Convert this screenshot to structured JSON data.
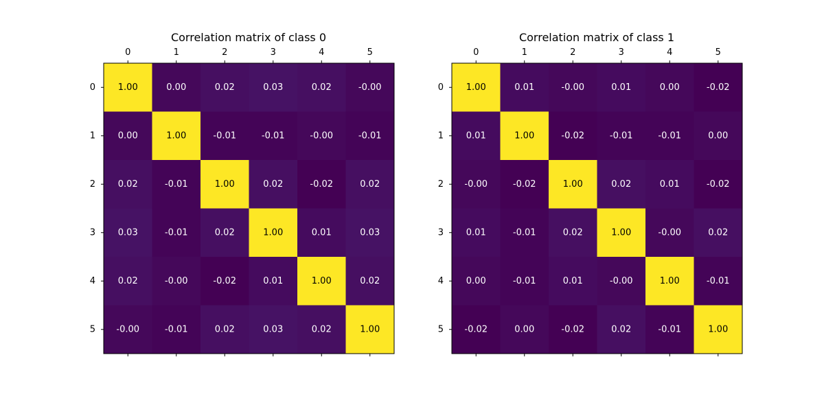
{
  "chart_data": [
    {
      "type": "heatmap",
      "title": "Correlation matrix of class 0",
      "x_tick_labels": [
        "0",
        "1",
        "2",
        "3",
        "4",
        "5"
      ],
      "y_tick_labels": [
        "0",
        "1",
        "2",
        "3",
        "4",
        "5"
      ],
      "x_ticks_position": "top",
      "grid": false,
      "colormap": "viridis",
      "value_range": [
        -0.02,
        1.0
      ],
      "cell_labels": [
        [
          "1.00",
          "0.00",
          "0.02",
          "0.03",
          "0.02",
          "-0.00"
        ],
        [
          "0.00",
          "1.00",
          "-0.01",
          "-0.01",
          "-0.00",
          "-0.01"
        ],
        [
          "0.02",
          "-0.01",
          "1.00",
          "0.02",
          "-0.02",
          "0.02"
        ],
        [
          "0.03",
          "-0.01",
          "0.02",
          "1.00",
          "0.01",
          "0.03"
        ],
        [
          "0.02",
          "-0.00",
          "-0.02",
          "0.01",
          "1.00",
          "0.02"
        ],
        [
          "-0.00",
          "-0.01",
          "0.02",
          "0.03",
          "0.02",
          "1.00"
        ]
      ],
      "values": [
        [
          1.0,
          0.0,
          0.02,
          0.03,
          0.02,
          -0.0
        ],
        [
          0.0,
          1.0,
          -0.01,
          -0.01,
          -0.0,
          -0.01
        ],
        [
          0.02,
          -0.01,
          1.0,
          0.02,
          -0.02,
          0.02
        ],
        [
          0.03,
          -0.01,
          0.02,
          1.0,
          0.01,
          0.03
        ],
        [
          0.02,
          -0.0,
          -0.02,
          0.01,
          1.0,
          0.02
        ],
        [
          -0.0,
          -0.01,
          0.02,
          0.03,
          0.02,
          1.0
        ]
      ]
    },
    {
      "type": "heatmap",
      "title": "Correlation matrix of class 1",
      "x_tick_labels": [
        "0",
        "1",
        "2",
        "3",
        "4",
        "5"
      ],
      "y_tick_labels": [
        "0",
        "1",
        "2",
        "3",
        "4",
        "5"
      ],
      "x_ticks_position": "top",
      "grid": false,
      "colormap": "viridis",
      "value_range": [
        -0.02,
        1.0
      ],
      "cell_labels": [
        [
          "1.00",
          "0.01",
          "-0.00",
          "0.01",
          "0.00",
          "-0.02"
        ],
        [
          "0.01",
          "1.00",
          "-0.02",
          "-0.01",
          "-0.01",
          "0.00"
        ],
        [
          "-0.00",
          "-0.02",
          "1.00",
          "0.02",
          "0.01",
          "-0.02"
        ],
        [
          "0.01",
          "-0.01",
          "0.02",
          "1.00",
          "-0.00",
          "0.02"
        ],
        [
          "0.00",
          "-0.01",
          "0.01",
          "-0.00",
          "1.00",
          "-0.01"
        ],
        [
          "-0.02",
          "0.00",
          "-0.02",
          "0.02",
          "-0.01",
          "1.00"
        ]
      ],
      "values": [
        [
          1.0,
          0.01,
          -0.0,
          0.01,
          0.0,
          -0.02
        ],
        [
          0.01,
          1.0,
          -0.02,
          -0.01,
          -0.01,
          0.0
        ],
        [
          -0.0,
          -0.02,
          1.0,
          0.02,
          0.01,
          -0.02
        ],
        [
          0.01,
          -0.01,
          0.02,
          1.0,
          -0.0,
          0.02
        ],
        [
          0.0,
          -0.01,
          0.01,
          -0.0,
          1.0,
          -0.01
        ],
        [
          -0.02,
          0.0,
          -0.02,
          0.02,
          -0.01,
          1.0
        ]
      ]
    }
  ]
}
